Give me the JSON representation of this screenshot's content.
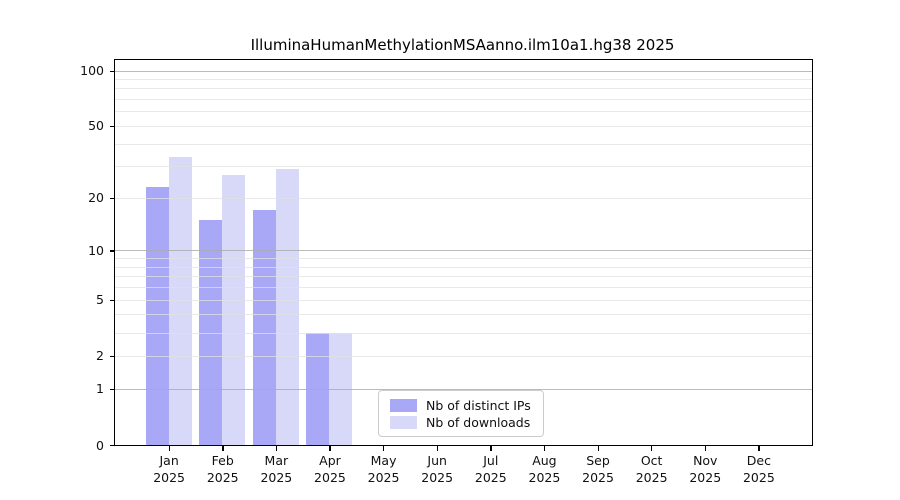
{
  "chart_data": {
    "type": "bar",
    "title": "IlluminaHumanMethylationMSAanno.ilm10a1.hg38 2025",
    "categories": [
      "Jan",
      "Feb",
      "Mar",
      "Apr",
      "May",
      "Jun",
      "Jul",
      "Aug",
      "Sep",
      "Oct",
      "Nov",
      "Dec"
    ],
    "year_label": "2025",
    "series": [
      {
        "name": "Nb of distinct IPs",
        "color": "#a8a8f7",
        "values": [
          23,
          15,
          17,
          3,
          0,
          0,
          0,
          0,
          0,
          0,
          0,
          0
        ]
      },
      {
        "name": "Nb of downloads",
        "color": "#d8d8f9",
        "values": [
          34,
          27,
          29,
          3,
          0,
          0,
          0,
          0,
          0,
          0,
          0,
          0
        ]
      }
    ],
    "yscale": "log1p",
    "ytick_labels": [
      0,
      1,
      2,
      5,
      10,
      20,
      50,
      100
    ],
    "minor_gridlines": [
      2,
      3,
      4,
      5,
      6,
      7,
      8,
      9,
      20,
      30,
      40,
      50,
      60,
      70,
      80,
      90
    ],
    "major_gridlines": [
      1,
      10,
      100
    ],
    "ylim": [
      0,
      114
    ],
    "grid": true,
    "legend_position": "inside-bottom-center",
    "colors": {
      "bar_distinct_ips": "#a8a8f7",
      "bar_downloads": "#d8d8f9",
      "axis": "#000000",
      "major_grid": "#c4c4c4",
      "minor_grid": "#ececec"
    }
  }
}
